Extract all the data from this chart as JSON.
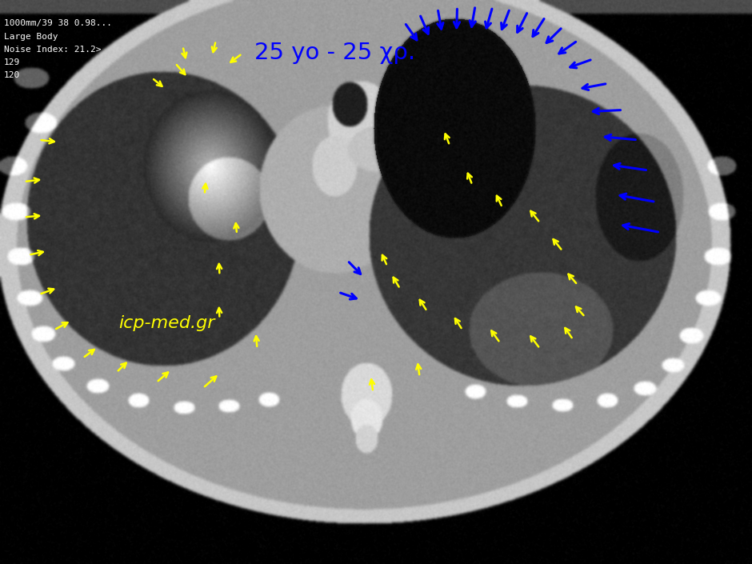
{
  "figsize": [
    9.4,
    7.05
  ],
  "dpi": 100,
  "watermark_text": "icp-med.gr",
  "watermark_color": "#ffff00",
  "label_text": "25 yo - 25 χρ.",
  "label_color": "#0000ff",
  "yellow_arrow_color": "#ffff00",
  "blue_arrow_color": "#0000ff",
  "yellow_arrows": [
    [
      0.233,
      0.112,
      0.25,
      0.138
    ],
    [
      0.202,
      0.138,
      0.22,
      0.158
    ],
    [
      0.243,
      0.082,
      0.248,
      0.11
    ],
    [
      0.287,
      0.072,
      0.282,
      0.1
    ],
    [
      0.322,
      0.095,
      0.302,
      0.115
    ],
    [
      0.052,
      0.248,
      0.078,
      0.252
    ],
    [
      0.032,
      0.322,
      0.058,
      0.318
    ],
    [
      0.032,
      0.385,
      0.058,
      0.382
    ],
    [
      0.038,
      0.452,
      0.063,
      0.445
    ],
    [
      0.052,
      0.522,
      0.077,
      0.51
    ],
    [
      0.072,
      0.585,
      0.095,
      0.568
    ],
    [
      0.11,
      0.635,
      0.13,
      0.615
    ],
    [
      0.155,
      0.66,
      0.172,
      0.638
    ],
    [
      0.208,
      0.678,
      0.228,
      0.655
    ],
    [
      0.27,
      0.688,
      0.292,
      0.662
    ],
    [
      0.292,
      0.565,
      0.291,
      0.538
    ],
    [
      0.292,
      0.488,
      0.291,
      0.46
    ],
    [
      0.315,
      0.415,
      0.313,
      0.388
    ],
    [
      0.272,
      0.345,
      0.274,
      0.318
    ],
    [
      0.598,
      0.258,
      0.59,
      0.23
    ],
    [
      0.628,
      0.328,
      0.62,
      0.3
    ],
    [
      0.668,
      0.368,
      0.658,
      0.34
    ],
    [
      0.718,
      0.395,
      0.702,
      0.368
    ],
    [
      0.748,
      0.445,
      0.732,
      0.418
    ],
    [
      0.768,
      0.505,
      0.752,
      0.48
    ],
    [
      0.778,
      0.562,
      0.762,
      0.538
    ],
    [
      0.762,
      0.602,
      0.748,
      0.575
    ],
    [
      0.718,
      0.618,
      0.702,
      0.59
    ],
    [
      0.665,
      0.608,
      0.65,
      0.58
    ],
    [
      0.615,
      0.585,
      0.602,
      0.558
    ],
    [
      0.568,
      0.552,
      0.555,
      0.525
    ],
    [
      0.532,
      0.512,
      0.52,
      0.485
    ],
    [
      0.515,
      0.472,
      0.506,
      0.445
    ],
    [
      0.558,
      0.668,
      0.555,
      0.638
    ],
    [
      0.496,
      0.695,
      0.493,
      0.665
    ],
    [
      0.342,
      0.618,
      0.34,
      0.588
    ]
  ],
  "blue_arrows": [
    [
      0.538,
      0.04,
      0.558,
      0.078
    ],
    [
      0.558,
      0.025,
      0.572,
      0.068
    ],
    [
      0.582,
      0.015,
      0.588,
      0.06
    ],
    [
      0.608,
      0.012,
      0.607,
      0.058
    ],
    [
      0.632,
      0.01,
      0.626,
      0.056
    ],
    [
      0.655,
      0.012,
      0.645,
      0.058
    ],
    [
      0.678,
      0.015,
      0.665,
      0.06
    ],
    [
      0.702,
      0.02,
      0.685,
      0.065
    ],
    [
      0.725,
      0.03,
      0.705,
      0.072
    ],
    [
      0.748,
      0.048,
      0.722,
      0.082
    ],
    [
      0.768,
      0.072,
      0.738,
      0.1
    ],
    [
      0.788,
      0.105,
      0.752,
      0.122
    ],
    [
      0.808,
      0.148,
      0.768,
      0.158
    ],
    [
      0.828,
      0.195,
      0.782,
      0.198
    ],
    [
      0.848,
      0.248,
      0.798,
      0.242
    ],
    [
      0.862,
      0.302,
      0.81,
      0.292
    ],
    [
      0.872,
      0.358,
      0.818,
      0.345
    ],
    [
      0.878,
      0.412,
      0.822,
      0.398
    ],
    [
      0.462,
      0.462,
      0.484,
      0.492
    ],
    [
      0.45,
      0.518,
      0.48,
      0.532
    ]
  ]
}
